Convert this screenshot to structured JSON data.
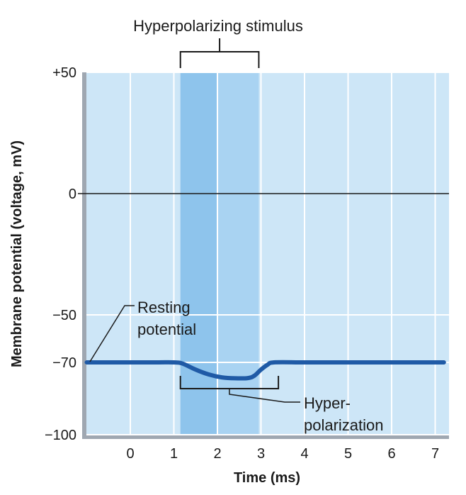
{
  "chart_data": {
    "type": "line",
    "title": "",
    "xlabel": "Time (ms)",
    "ylabel": "Membrane potential (voltage, mV)",
    "xlim": [
      -1,
      7.2
    ],
    "ylim": [
      -100,
      50
    ],
    "x_ticks": [
      0,
      1,
      2,
      3,
      4,
      5,
      6,
      7
    ],
    "x_tick_labels": [
      "0",
      "1",
      "2",
      "3",
      "4",
      "5",
      "6",
      "7"
    ],
    "y_ticks": [
      50,
      0,
      -50,
      -70,
      -100
    ],
    "y_tick_labels": [
      "+50",
      "0",
      "−50",
      "−70",
      "−100"
    ],
    "reference_line": 0,
    "stimulus_window": [
      1.15,
      2.95
    ],
    "stimulus_split": 2.0,
    "series": [
      {
        "name": "Membrane potential",
        "x": [
          -1,
          0.5,
          1.0,
          1.2,
          1.5,
          1.8,
          2.1,
          2.4,
          2.7,
          2.85,
          3.0,
          3.15,
          3.3,
          4,
          5,
          6,
          7.2
        ],
        "y": [
          -70,
          -70,
          -70,
          -70.5,
          -73,
          -75,
          -76.2,
          -76.6,
          -76.5,
          -75.5,
          -73,
          -71,
          -70,
          -70,
          -70,
          -70,
          -70
        ]
      }
    ],
    "annotations": {
      "stimulus": "Hyperpolarizing stimulus",
      "resting_line1": "Resting",
      "resting_line2": "potential",
      "hyper_line1": "Hyper-",
      "hyper_line2": "polarization"
    },
    "hyperpolarization_span": [
      1.15,
      3.4
    ],
    "colors": {
      "plot_background": "#cde6f7",
      "stimulus_band_dark": "#8ec4ec",
      "stimulus_band_light": "#a9d3f2",
      "grid": "#ffffff",
      "frame": "#9fa7b1",
      "trace": "#1f5aa6",
      "reference": "#1a1a1a"
    }
  }
}
